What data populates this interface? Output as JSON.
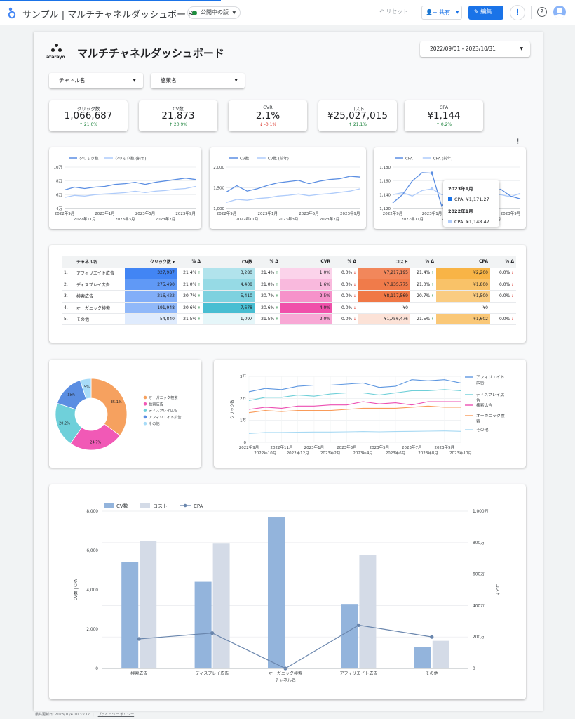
{
  "app": {
    "title": "サンプル | マルチチャネルダッシュボード",
    "status": "公開中の版"
  },
  "toolbar": {
    "reset": "リセット",
    "share": "共有",
    "edit": "編集"
  },
  "report": {
    "brand": "atarayo",
    "title": "マルチチャネルダッシュボード",
    "date_range": "2022/09/01 - 2023/10/31",
    "filters": [
      "チャネル名",
      "施策名"
    ]
  },
  "kpis": [
    {
      "label": "クリック数",
      "value": "1,066,687",
      "delta": "↑ 21.0%",
      "dir": "up"
    },
    {
      "label": "CV数",
      "value": "21,873",
      "delta": "↑ 20.9%",
      "dir": "up"
    },
    {
      "label": "CVR",
      "value": "2.1%",
      "delta": "↓ -0.1%",
      "dir": "down"
    },
    {
      "label": "コスト",
      "value": "¥25,027,015",
      "delta": "↑ 21.1%",
      "dir": "up"
    },
    {
      "label": "CPA",
      "value": "¥1,144",
      "delta": "↑ 0.2%",
      "dir": "up"
    }
  ],
  "trend_labels_row1": [
    "2022年9月",
    "2023年1月",
    "2023年5月",
    "2023年9月"
  ],
  "trend_labels_row2": [
    "2022年11月",
    "2023年3月",
    "2023年7月"
  ],
  "tooltip": {
    "h1": "2023年1月",
    "v1": "CPA: ¥1,171.27",
    "h2": "2022年1月",
    "v2": "CPA: ¥1,148.47"
  },
  "table": {
    "headers": [
      "チャネル名",
      "クリック数 ▾",
      "% Δ",
      "CV数",
      "% Δ",
      "CVR",
      "% Δ",
      "コスト",
      "% Δ",
      "CPA",
      "% Δ"
    ],
    "rows": [
      {
        "no": "1.",
        "name": "アフィリエイト広告",
        "clicks": "327,987",
        "clicks_d": "21.4%",
        "clicks_a": "↑",
        "cv": "3,280",
        "cv_d": "21.4%",
        "cv_a": "↑",
        "cvr": "1.0%",
        "cvr_d": "0.0%",
        "cvr_a": "↓",
        "cost": "¥7,217,195",
        "cost_d": "21.4%",
        "cost_a": "↑",
        "cpa": "¥2,200",
        "cpa_d": "0.0%",
        "cpa_a": "↓"
      },
      {
        "no": "2.",
        "name": "ディスプレイ広告",
        "clicks": "275,490",
        "clicks_d": "21.0%",
        "clicks_a": "↑",
        "cv": "4,408",
        "cv_d": "21.0%",
        "cv_a": "↑",
        "cvr": "1.6%",
        "cvr_d": "0.0%",
        "cvr_a": "↓",
        "cost": "¥7,935,775",
        "cost_d": "21.0%",
        "cost_a": "↑",
        "cpa": "¥1,800",
        "cpa_d": "0.0%",
        "cpa_a": "↓"
      },
      {
        "no": "3.",
        "name": "検索広告",
        "clicks": "216,422",
        "clicks_d": "20.7%",
        "clicks_a": "↑",
        "cv": "5,410",
        "cv_d": "20.7%",
        "cv_a": "↑",
        "cvr": "2.5%",
        "cvr_d": "0.0%",
        "cvr_a": "↓",
        "cost": "¥8,117,569",
        "cost_d": "20.7%",
        "cost_a": "↑",
        "cpa": "¥1,500",
        "cpa_d": "0.0%",
        "cpa_a": "↓"
      },
      {
        "no": "4.",
        "name": "オーガニック検索",
        "clicks": "191,948",
        "clicks_d": "20.6%",
        "clicks_a": "↑",
        "cv": "7,678",
        "cv_d": "20.6%",
        "cv_a": "↑",
        "cvr": "4.0%",
        "cvr_d": "0.0%",
        "cvr_a": "↓",
        "cost": "¥0",
        "cost_d": "-",
        "cost_a": "",
        "cpa": "¥0",
        "cpa_d": "-",
        "cpa_a": ""
      },
      {
        "no": "5.",
        "name": "その他",
        "clicks": "54,840",
        "clicks_d": "21.5%",
        "clicks_a": "↑",
        "cv": "1,097",
        "cv_d": "21.5%",
        "cv_a": "↑",
        "cvr": "2.0%",
        "cvr_d": "0.0%",
        "cvr_a": "↓",
        "cost": "¥1,756,476",
        "cost_d": "21.5%",
        "cost_a": "↑",
        "cpa": "¥1,602",
        "cpa_d": "0.0%",
        "cpa_a": "↓"
      }
    ]
  },
  "footer": {
    "updated": "最終更新日: 2023/10/4 10:33:12",
    "privacy": "プライバシー ポリシー"
  },
  "colors": {
    "accent": "#1a73e8",
    "up": "#188038",
    "down": "#d93025"
  },
  "chart_data": [
    {
      "type": "line",
      "x": [
        "2022年9月",
        "2022年10月",
        "2022年11月",
        "2022年12月",
        "2023年1月",
        "2023年2月",
        "2023年3月",
        "2023年4月",
        "2023年5月",
        "2023年6月",
        "2023年7月",
        "2023年8月",
        "2023年9月",
        "2023年10月"
      ],
      "series": [
        {
          "name": "クリック数",
          "values": [
            67000,
            71000,
            69000,
            71000,
            72000,
            75000,
            76000,
            78000,
            75000,
            78000,
            80000,
            82000,
            84000,
            82000
          ]
        },
        {
          "name": "クリック数 (前年)",
          "values": [
            56000,
            59000,
            58000,
            60000,
            61000,
            62000,
            63000,
            65000,
            63000,
            65000,
            66000,
            68000,
            69000,
            72000
          ]
        }
      ],
      "ylim": [
        40000,
        100000
      ],
      "yticks": [
        "4万",
        "6万",
        "8万",
        "10万"
      ],
      "legend": "top"
    },
    {
      "type": "line",
      "x": [
        "2022年9月",
        "2022年10月",
        "2022年11月",
        "2022年12月",
        "2023年1月",
        "2023年2月",
        "2023年3月",
        "2023年4月",
        "2023年5月",
        "2023年6月",
        "2023年7月",
        "2023年8月",
        "2023年9月",
        "2023年10月"
      ],
      "series": [
        {
          "name": "CV数",
          "values": [
            1400,
            1550,
            1420,
            1480,
            1560,
            1620,
            1650,
            1680,
            1600,
            1660,
            1700,
            1720,
            1780,
            1760
          ]
        },
        {
          "name": "CV数 (前年)",
          "values": [
            1150,
            1220,
            1200,
            1240,
            1260,
            1300,
            1320,
            1350,
            1310,
            1340,
            1360,
            1390,
            1420,
            1480
          ]
        }
      ],
      "ylim": [
        1000,
        2000
      ],
      "yticks": [
        "1,000",
        "1,500",
        "2,000"
      ],
      "legend": "top"
    },
    {
      "type": "line",
      "x": [
        "2022年9月",
        "2022年10月",
        "2022年11月",
        "2022年12月",
        "2023年1月",
        "2023年2月",
        "2023年3月",
        "2023年4月",
        "2023年5月",
        "2023年6月",
        "2023年7月",
        "2023年8月",
        "2023年9月",
        "2023年10月"
      ],
      "series": [
        {
          "name": "CPA",
          "values": [
            1128,
            1140,
            1160,
            1172,
            1171.27,
            1123,
            1141,
            1146,
            1150,
            1140,
            1142,
            1148,
            1138,
            1134
          ]
        },
        {
          "name": "CPA (前年)",
          "values": [
            1140,
            1143,
            1138,
            1146,
            1148.47,
            1140,
            1141,
            1138,
            1143,
            1139,
            1141,
            1140,
            1137,
            1142
          ]
        }
      ],
      "ylim": [
        1120,
        1180
      ],
      "yticks": [
        "1,120",
        "1,140",
        "1,160",
        "1,180"
      ],
      "legend": "top"
    },
    {
      "type": "pie",
      "categories": [
        "オーガニック検索",
        "検索広告",
        "ディスプレイ広告",
        "アフィリエイト広告",
        "その他"
      ],
      "values": [
        35.1,
        24.7,
        20.2,
        15,
        5
      ],
      "labels": [
        "35.1%",
        "24.7%",
        "20.2%",
        "15%",
        "5%"
      ],
      "colors": [
        "#f6a15f",
        "#f159b6",
        "#6fd0da",
        "#5b8ee2",
        "#a8dcf8"
      ],
      "donut": true,
      "legend": "right"
    },
    {
      "type": "line",
      "x": [
        "2022年9月",
        "2022年10月",
        "2022年11月",
        "2022年12月",
        "2023年1月",
        "2023年2月",
        "2023年3月",
        "2023年4月",
        "2023年5月",
        "2023年6月",
        "2023年7月",
        "2023年8月",
        "2023年9月",
        "2023年10月"
      ],
      "series": [
        {
          "name": "アフィリエイト広告",
          "values": [
            23000,
            24500,
            24000,
            25500,
            26000,
            26000,
            26500,
            27000,
            25000,
            25500,
            28500,
            28000,
            28500,
            27000
          ]
        },
        {
          "name": "ディスプレイ広告",
          "values": [
            19000,
            20500,
            20500,
            21500,
            21000,
            22000,
            22500,
            22500,
            21500,
            22500,
            23500,
            23500,
            24000,
            23500
          ]
        },
        {
          "name": "検索広告",
          "values": [
            15000,
            16000,
            15500,
            16500,
            16500,
            17000,
            17000,
            18500,
            17500,
            18000,
            17000,
            18500,
            18500,
            18500
          ]
        },
        {
          "name": "オーガニック検索",
          "values": [
            13500,
            14500,
            14000,
            14500,
            14500,
            14500,
            15000,
            15500,
            15500,
            15500,
            16000,
            16500,
            16000,
            16000
          ]
        },
        {
          "name": "その他",
          "values": [
            4000,
            4500,
            4500,
            4600,
            4700,
            4700,
            4800,
            4900,
            4800,
            4900,
            5000,
            5100,
            5200,
            5000
          ]
        }
      ],
      "ylabel": "クリック数",
      "ylim": [
        0,
        30000
      ],
      "yticks": [
        "0",
        "1万",
        "2万",
        "3万"
      ],
      "x_labels_row1": [
        "2022年9月",
        "2022年11月",
        "2023年1月",
        "2023年3月",
        "2023年5月",
        "2023年7月",
        "2023年9月"
      ],
      "x_labels_row2": [
        "2022年10月",
        "2022年12月",
        "2023年2月",
        "2023年4月",
        "2023年6月",
        "2023年8月",
        "2023年10月"
      ],
      "colors": [
        "#5e97e0",
        "#6fcfd8",
        "#ec4fb2",
        "#f99b59",
        "#a7d9f3"
      ],
      "legend": "right"
    },
    {
      "type": "bar",
      "categories": [
        "検索広告",
        "ディスプレイ広告",
        "オーガニック検索",
        "アフィリエイト広告",
        "その他"
      ],
      "series": [
        {
          "name": "CV数",
          "values": [
            5410,
            4408,
            7678,
            3280,
            1097
          ],
          "axis": "left"
        },
        {
          "name": "コスト",
          "values": [
            8117569,
            7935775,
            0,
            7217195,
            1756476
          ],
          "axis": "right"
        },
        {
          "name": "CPA",
          "values": [
            1500,
            1800,
            0,
            2200,
            1602
          ],
          "axis": "left",
          "type": "line"
        }
      ],
      "xlabel": "チャネル名",
      "ylabel": "CV数 | CPA",
      "y2label": "コスト",
      "ylim": [
        0,
        8000
      ],
      "y2lim": [
        0,
        10000000
      ],
      "yticks": [
        "0",
        "2,000",
        "4,000",
        "6,000",
        "8,000"
      ],
      "y2ticks": [
        "0",
        "200万",
        "400万",
        "600万",
        "800万",
        "1,000万"
      ],
      "legend": "top-left"
    }
  ]
}
